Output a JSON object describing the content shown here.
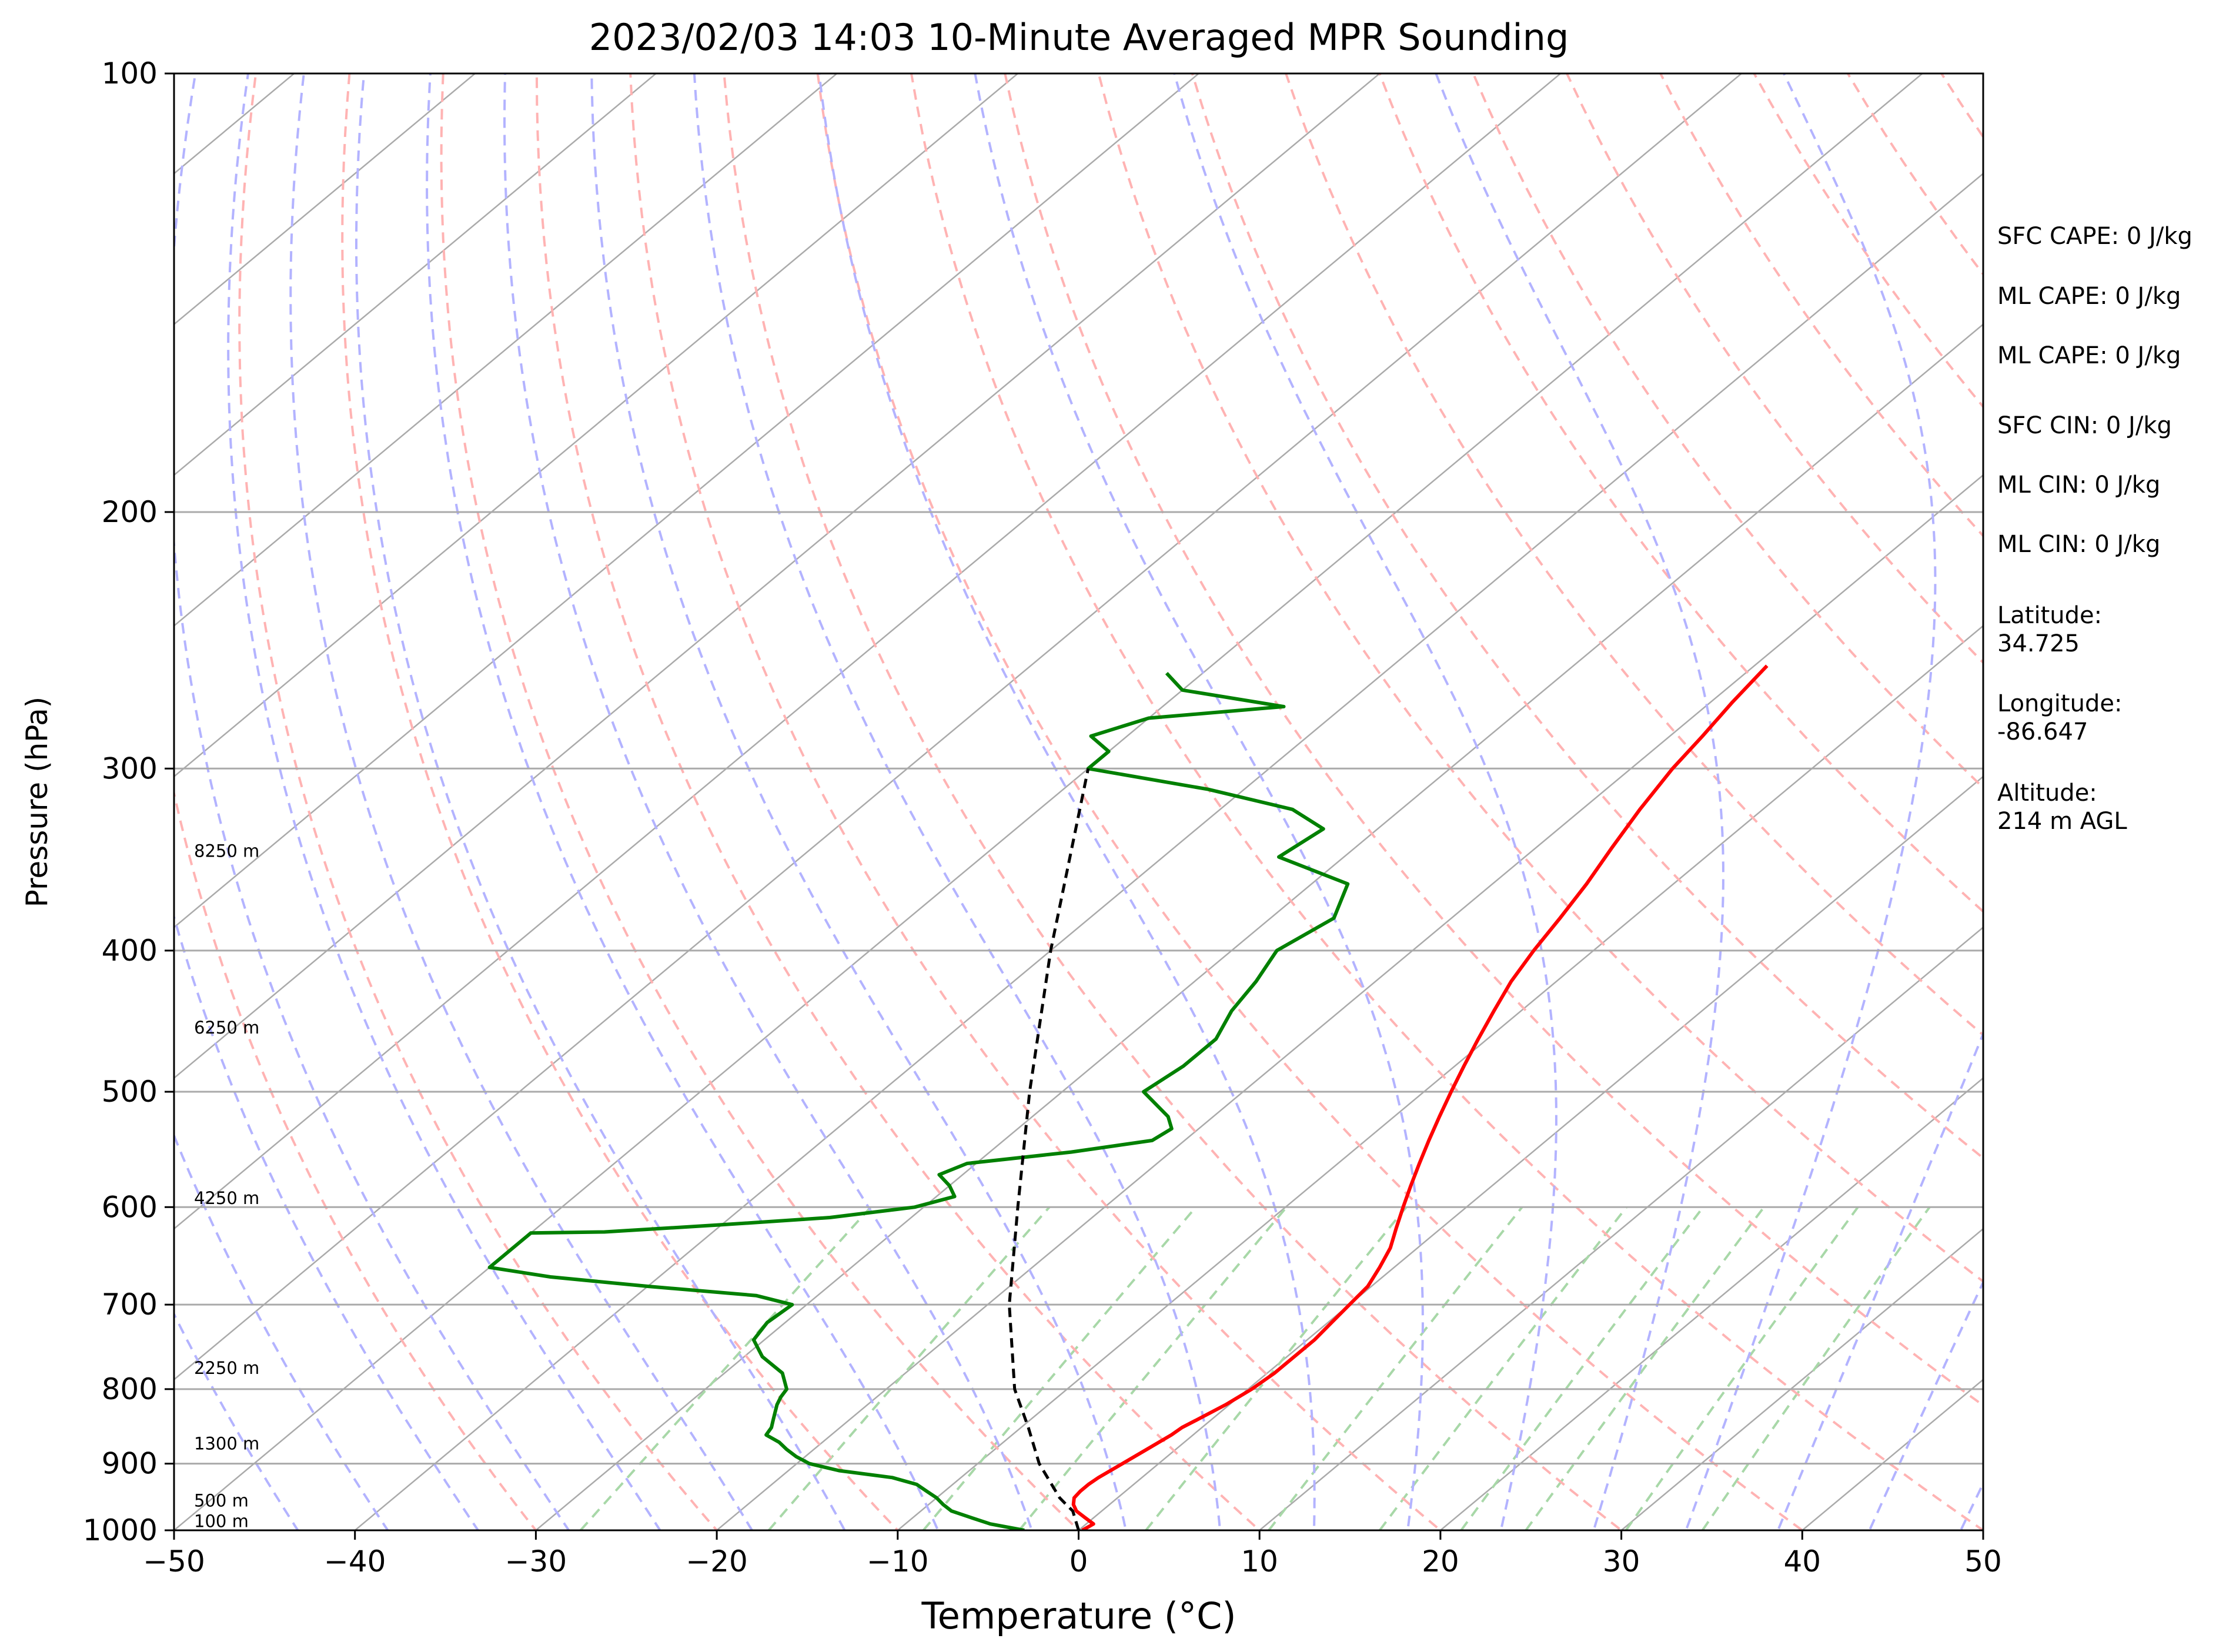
{
  "chart_data": {
    "type": "line",
    "title": "2023/02/03 14:03 10-Minute Averaged MPR Sounding",
    "xlabel": "Temperature (°C)",
    "ylabel": "Pressure (hPa)",
    "xlim": [
      -50,
      50
    ],
    "ylim": [
      1000,
      100
    ],
    "y_scale": "log",
    "x_ticks": [
      -50,
      -40,
      -30,
      -20,
      -10,
      0,
      10,
      20,
      30,
      40,
      50
    ],
    "x_tick_labels": [
      "−50",
      "−40",
      "−30",
      "−20",
      "−10",
      "0",
      "10",
      "20",
      "30",
      "40",
      "50"
    ],
    "y_ticks": [
      100,
      200,
      300,
      400,
      500,
      600,
      700,
      800,
      900,
      1000
    ],
    "y_tick_labels": [
      "100",
      "200",
      "300",
      "400",
      "500",
      "600",
      "700",
      "800",
      "900",
      "1000"
    ],
    "grid": true,
    "series": [
      {
        "color": "#ff0000",
        "points": [
          [
            1000,
            0.2
          ],
          [
            990,
            0.4
          ],
          [
            980,
            -0.5
          ],
          [
            970,
            -1.4
          ],
          [
            960,
            -2.0
          ],
          [
            950,
            -2.4
          ],
          [
            940,
            -2.5
          ],
          [
            930,
            -2.5
          ],
          [
            920,
            -2.4
          ],
          [
            910,
            -2.2
          ],
          [
            900,
            -2.0
          ],
          [
            880,
            -1.6
          ],
          [
            860,
            -1.2
          ],
          [
            850,
            -1.1
          ],
          [
            840,
            -0.8
          ],
          [
            820,
            -0.2
          ],
          [
            800,
            0.2
          ],
          [
            780,
            0.4
          ],
          [
            760,
            0.4
          ],
          [
            740,
            0.4
          ],
          [
            720,
            0.2
          ],
          [
            700,
            0.0
          ],
          [
            680,
            -0.2
          ],
          [
            660,
            -0.8
          ],
          [
            640,
            -1.5
          ],
          [
            620,
            -2.5
          ],
          [
            600,
            -3.5
          ],
          [
            580,
            -4.5
          ],
          [
            560,
            -5.5
          ],
          [
            540,
            -6.5
          ],
          [
            520,
            -7.5
          ],
          [
            500,
            -8.5
          ],
          [
            480,
            -9.5
          ],
          [
            460,
            -10.5
          ],
          [
            440,
            -11.5
          ],
          [
            420,
            -12.5
          ],
          [
            400,
            -13.3
          ],
          [
            380,
            -14.0
          ],
          [
            360,
            -14.8
          ],
          [
            340,
            -15.8
          ],
          [
            320,
            -16.8
          ],
          [
            300,
            -17.7
          ],
          [
            285,
            -18.2
          ],
          [
            270,
            -18.8
          ],
          [
            255,
            -19.3
          ]
        ]
      },
      {
        "color": "#008000",
        "points": [
          [
            1000,
            -3.0
          ],
          [
            990,
            -5.3
          ],
          [
            980,
            -6.8
          ],
          [
            970,
            -8.3
          ],
          [
            960,
            -9.2
          ],
          [
            950,
            -10.0
          ],
          [
            940,
            -11.0
          ],
          [
            930,
            -12.0
          ],
          [
            920,
            -13.8
          ],
          [
            910,
            -17.2
          ],
          [
            900,
            -19.3
          ],
          [
            890,
            -20.5
          ],
          [
            880,
            -21.5
          ],
          [
            870,
            -22.4
          ],
          [
            860,
            -23.6
          ],
          [
            850,
            -23.8
          ],
          [
            840,
            -24.2
          ],
          [
            820,
            -25.0
          ],
          [
            810,
            -25.3
          ],
          [
            800,
            -25.5
          ],
          [
            780,
            -26.8
          ],
          [
            760,
            -29.0
          ],
          [
            740,
            -30.6
          ],
          [
            720,
            -31.0
          ],
          [
            700,
            -30.8
          ],
          [
            690,
            -33.4
          ],
          [
            680,
            -40.0
          ],
          [
            670,
            -46.0
          ],
          [
            660,
            -50.0
          ],
          [
            625,
            -50.0
          ],
          [
            624,
            -46.0
          ],
          [
            617,
            -40.0
          ],
          [
            610,
            -34.5
          ],
          [
            600,
            -30.5
          ],
          [
            590,
            -29.0
          ],
          [
            580,
            -30.0
          ],
          [
            570,
            -31.3
          ],
          [
            560,
            -30.5
          ],
          [
            550,
            -25.5
          ],
          [
            540,
            -21.8
          ],
          [
            530,
            -21.5
          ],
          [
            520,
            -22.5
          ],
          [
            500,
            -25.5
          ],
          [
            480,
            -25.0
          ],
          [
            460,
            -25.0
          ],
          [
            440,
            -26.0
          ],
          [
            420,
            -26.6
          ],
          [
            400,
            -27.5
          ],
          [
            380,
            -26.5
          ],
          [
            360,
            -28.0
          ],
          [
            345,
            -33.6
          ],
          [
            330,
            -33.0
          ],
          [
            320,
            -36.0
          ],
          [
            310,
            -42.0
          ],
          [
            300,
            -50.0
          ],
          [
            292,
            -50.0
          ],
          [
            285,
            -52.0
          ],
          [
            277,
            -50.0
          ],
          [
            272,
            -43.3
          ],
          [
            265,
            -50.0
          ],
          [
            258,
            -52.0
          ]
        ]
      },
      {
        "color": "#000000",
        "dashed": true,
        "points": [
          [
            1000,
            0.0
          ],
          [
            970,
            -1.6
          ],
          [
            960,
            -2.4
          ],
          [
            950,
            -3.2
          ],
          [
            900,
            -6.6
          ],
          [
            850,
            -9.6
          ],
          [
            800,
            -12.9
          ],
          [
            700,
            -18.8
          ],
          [
            600,
            -24.8
          ],
          [
            500,
            -31.8
          ],
          [
            400,
            -40.0
          ],
          [
            300,
            -50.0
          ]
        ]
      }
    ],
    "height_labels": [
      "100 m",
      "500 m",
      "1300 m",
      "2250 m",
      "4250 m",
      "6250 m",
      "8250 m"
    ],
    "annotations": [
      "SFC CAPE: 0 J/kg",
      "ML CAPE: 0 J/kg",
      "ML CAPE: 0 J/kg",
      "SFC CIN: 0 J/kg",
      "ML CIN: 0 J/kg",
      "ML CIN: 0 J/kg",
      "Latitude:",
      "34.725",
      "Longitude:",
      "-86.647",
      "Altitude:",
      "214 m AGL"
    ],
    "colors": {
      "isotherm": "#aaaaaa",
      "dry_adiabat": "#ffb3b3",
      "moist_adiabat": "#b3b3ff",
      "mixing_ratio": "#a8d8a8"
    }
  }
}
